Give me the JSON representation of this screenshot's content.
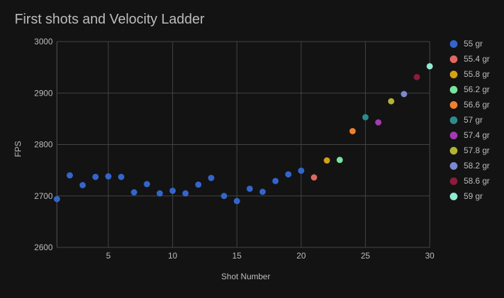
{
  "chart_data": {
    "type": "scatter",
    "title": "First shots and Velocity Ladder",
    "xlabel": "Shot Number",
    "ylabel": "FPS",
    "xlim": [
      1,
      30
    ],
    "ylim": [
      2600,
      3000
    ],
    "xticks": [
      5,
      10,
      15,
      20,
      25,
      30
    ],
    "yticks": [
      2600,
      2700,
      2800,
      2900,
      3000
    ],
    "grid": true,
    "legend_position": "right",
    "series": [
      {
        "name": "55 gr",
        "color": "#3366cc",
        "points": [
          [
            1,
            2694
          ],
          [
            2,
            2740
          ],
          [
            3,
            2721
          ],
          [
            4,
            2737
          ],
          [
            5,
            2738
          ],
          [
            6,
            2737
          ],
          [
            7,
            2707
          ],
          [
            8,
            2723
          ],
          [
            9,
            2705
          ],
          [
            10,
            2710
          ],
          [
            11,
            2705
          ],
          [
            12,
            2722
          ],
          [
            13,
            2735
          ],
          [
            14,
            2700
          ],
          [
            15,
            2690
          ],
          [
            16,
            2714
          ],
          [
            17,
            2708
          ],
          [
            18,
            2729
          ],
          [
            19,
            2742
          ],
          [
            20,
            2749
          ]
        ]
      },
      {
        "name": "55.4 gr",
        "color": "#e0675e",
        "points": [
          [
            21,
            2736
          ]
        ]
      },
      {
        "name": "55.8 gr",
        "color": "#d4a017",
        "points": [
          [
            22,
            2769
          ]
        ]
      },
      {
        "name": "56.2 gr",
        "color": "#7ae39b",
        "points": [
          [
            23,
            2770
          ]
        ]
      },
      {
        "name": "56.6 gr",
        "color": "#f0802f",
        "points": [
          [
            24,
            2826
          ]
        ]
      },
      {
        "name": "57 gr",
        "color": "#2e8b8b",
        "points": [
          [
            25,
            2853
          ]
        ]
      },
      {
        "name": "57.4 gr",
        "color": "#a33ab3",
        "points": [
          [
            26,
            2843
          ]
        ]
      },
      {
        "name": "57.8 gr",
        "color": "#b3b335",
        "points": [
          [
            27,
            2884
          ]
        ]
      },
      {
        "name": "58.2 gr",
        "color": "#7b89d1",
        "points": [
          [
            28,
            2898
          ]
        ]
      },
      {
        "name": "58.6 gr",
        "color": "#8b1c3d",
        "points": [
          [
            29,
            2931
          ]
        ]
      },
      {
        "name": "59 gr",
        "color": "#8fead2",
        "points": [
          [
            30,
            2952
          ]
        ]
      }
    ]
  }
}
